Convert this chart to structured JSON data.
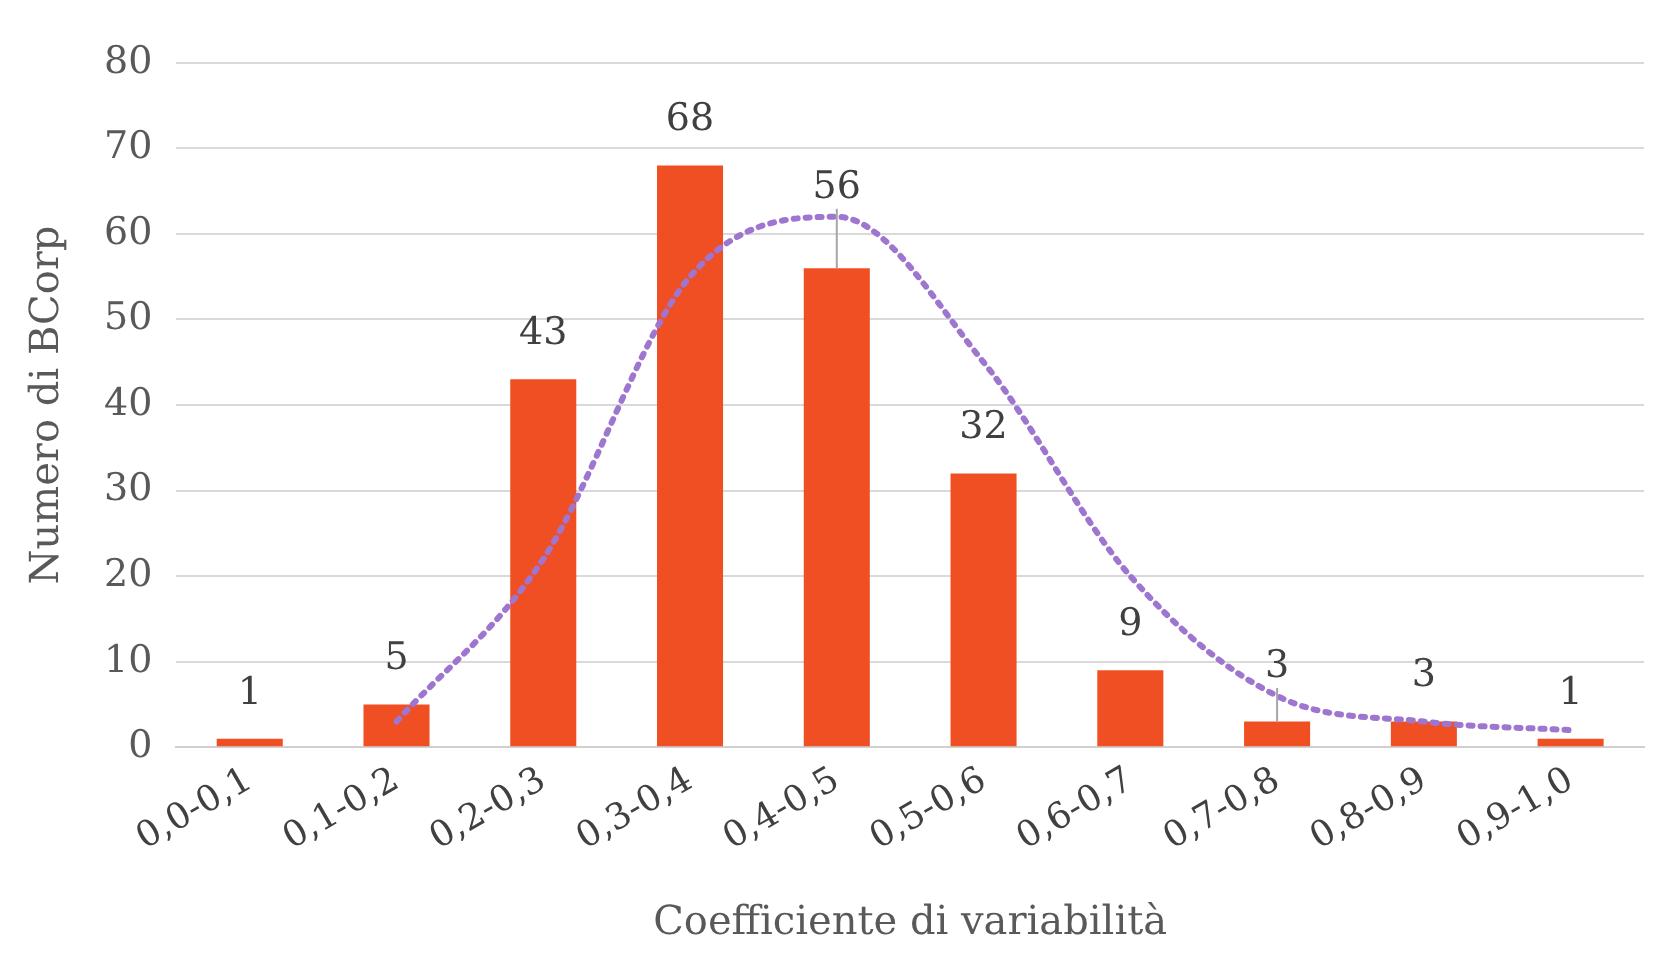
{
  "chart_data": {
    "type": "bar",
    "xlabel": "Coefficiente di variabilità",
    "ylabel": "Numero di BCorp",
    "categories": [
      "0,0-0,1",
      "0,1-0,2",
      "0,2-0,3",
      "0,3-0,4",
      "0,4-0,5",
      "0,5-0,6",
      "0,6-0,7",
      "0,7-0,8",
      "0,8-0,9",
      "0,9-1,0"
    ],
    "series": [
      {
        "color": "#f04e23",
        "values": [
          1,
          5,
          43,
          68,
          56,
          32,
          9,
          3,
          3,
          1
        ],
        "value_labels": [
          "1",
          "5",
          "43",
          "68",
          "56",
          "32",
          "9",
          "3",
          "3",
          "1"
        ]
      },
      {
        "type": "line",
        "color": "#9e76d0",
        "line_style": "dotted",
        "marker": "none",
        "values": [
          null,
          3,
          22,
          55,
          62,
          45,
          20,
          6,
          3,
          2
        ]
      }
    ],
    "ylim": [
      0,
      80
    ],
    "yticks": [
      0,
      10,
      20,
      30,
      40,
      50,
      60,
      70,
      80
    ],
    "grid": "y",
    "legend": false
  }
}
